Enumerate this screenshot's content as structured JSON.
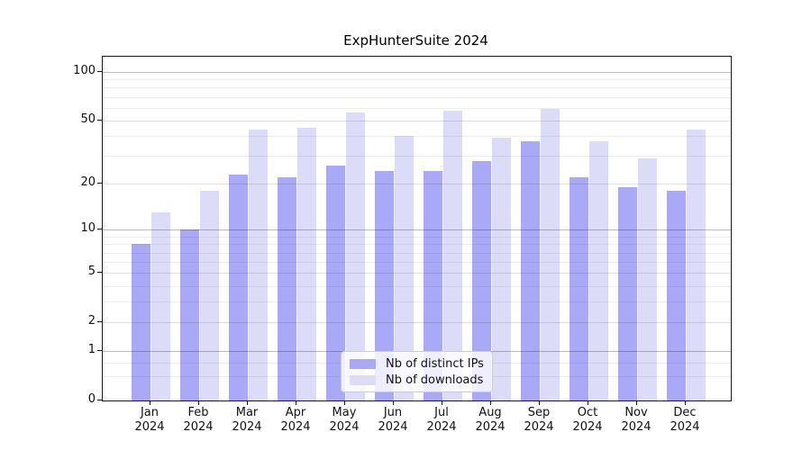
{
  "chart_data": {
    "type": "bar",
    "title": "ExpHunterSuite 2024",
    "x_months": [
      "Jan",
      "Feb",
      "Mar",
      "Apr",
      "May",
      "Jun",
      "Jul",
      "Aug",
      "Sep",
      "Oct",
      "Nov",
      "Dec"
    ],
    "x_year": "2024",
    "series": [
      {
        "name": "Nb of distinct IPs",
        "color": "#a9a9f7",
        "values": [
          8,
          10,
          23,
          22,
          26,
          24,
          24,
          28,
          37,
          22,
          19,
          18
        ]
      },
      {
        "name": "Nb of downloads",
        "color": "#dcdcf8",
        "values": [
          13,
          18,
          44,
          45,
          56,
          40,
          58,
          39,
          59,
          37,
          29,
          44
        ]
      }
    ],
    "y_axis": {
      "scale": "log1p",
      "tick_labels": [
        100,
        50,
        20,
        10,
        5,
        2,
        1,
        0
      ],
      "decade_gridlines": [
        1,
        10,
        100
      ],
      "minor_gridlines": [
        0.4,
        0.7,
        3,
        4,
        6,
        7,
        8,
        9,
        30,
        40,
        60,
        70,
        80,
        90
      ],
      "ylim": [
        0,
        124
      ]
    },
    "legend": {
      "position": "lower center",
      "frame": true
    },
    "grid": true
  }
}
